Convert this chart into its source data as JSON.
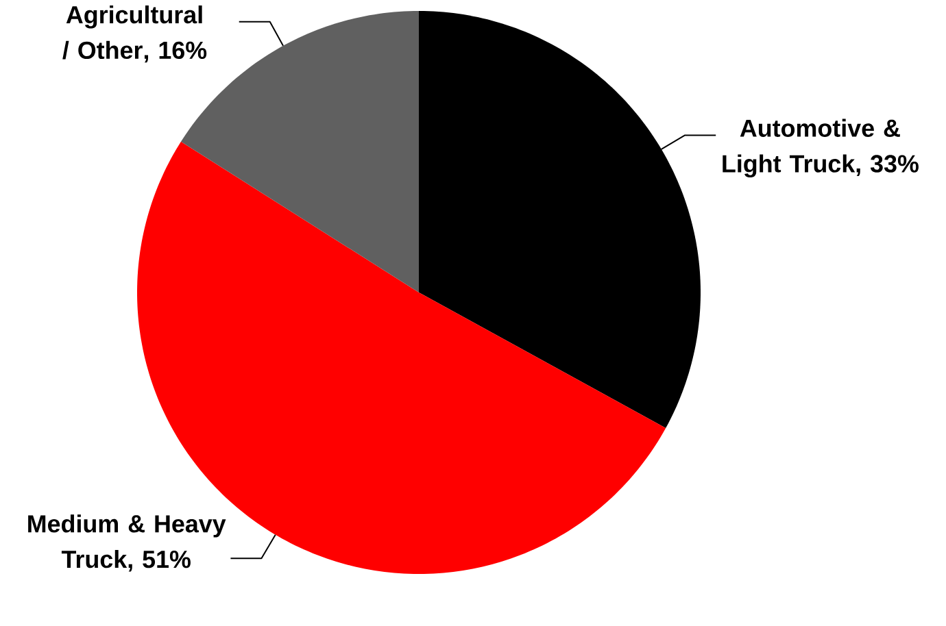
{
  "chart_data": {
    "type": "pie",
    "categories": [
      "Automotive & Light Truck",
      "Medium & Heavy Truck",
      "Agricultural / Other"
    ],
    "values": [
      33,
      51,
      16
    ],
    "value_labels": [
      ", 33%",
      ", 51%",
      ", 16%"
    ],
    "colors": [
      "#000000",
      "#ff0000",
      "#606060"
    ]
  }
}
